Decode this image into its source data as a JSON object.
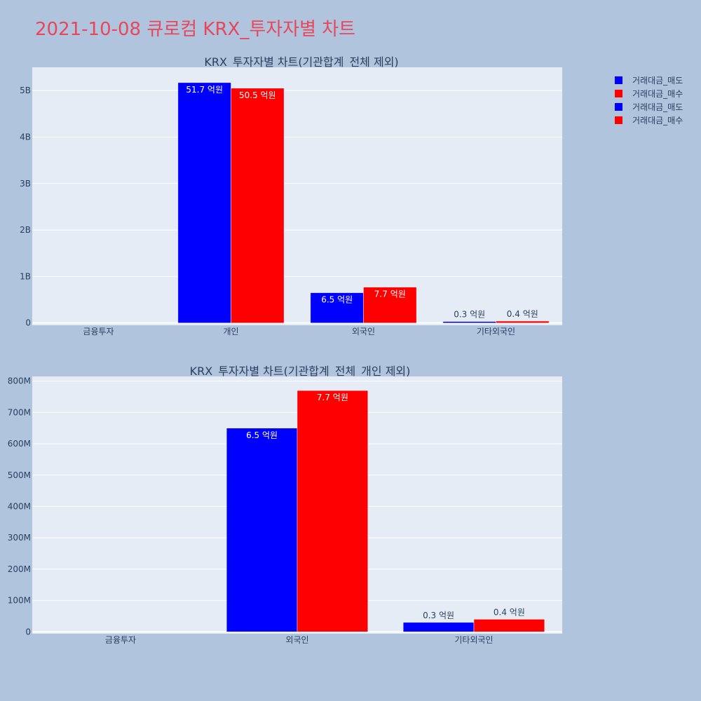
{
  "page_title": "2021-10-08 큐로컴 KRX_투자자별 차트",
  "legend": [
    {
      "label": "거래대금_매도",
      "color": "#0000ff"
    },
    {
      "label": "거래대금_매수",
      "color": "#ff0000"
    },
    {
      "label": "거래대금_매도",
      "color": "#0000ff"
    },
    {
      "label": "거래대금_매수",
      "color": "#ff0000"
    }
  ],
  "chart_data": [
    {
      "type": "bar",
      "title": "KRX_투자자별 차트(기관합계_전체 제외)",
      "categories": [
        "금융투자",
        "개인",
        "외국인",
        "기타외국인"
      ],
      "series": [
        {
          "name": "거래대금_매도",
          "color": "#0000ff",
          "values": [
            0,
            5170000000,
            650000000,
            30000000
          ],
          "labels": [
            "",
            "51.7 억원",
            "6.5 억원",
            "0.3 억원"
          ]
        },
        {
          "name": "거래대금_매수",
          "color": "#ff0000",
          "values": [
            0,
            5050000000,
            770000000,
            40000000
          ],
          "labels": [
            "",
            "50.5 억원",
            "7.7 억원",
            "0.4 억원"
          ]
        }
      ],
      "yticks": [
        0,
        1000000000,
        2000000000,
        3000000000,
        4000000000,
        5000000000
      ],
      "ytick_labels": [
        "0",
        "1B",
        "2B",
        "3B",
        "4B",
        "5B"
      ],
      "ylim": [
        -50000000,
        5500000000
      ],
      "grid": true
    },
    {
      "type": "bar",
      "title": "KRX_투자자별 차트(기관합계_전체_개인 제외)",
      "categories": [
        "금융투자",
        "외국인",
        "기타외국인"
      ],
      "series": [
        {
          "name": "거래대금_매도",
          "color": "#0000ff",
          "values": [
            0,
            650000000,
            30000000
          ],
          "labels": [
            "",
            "6.5 억원",
            "0.3 억원"
          ]
        },
        {
          "name": "거래대금_매수",
          "color": "#ff0000",
          "values": [
            0,
            770000000,
            40000000
          ],
          "labels": [
            "",
            "7.7 억원",
            "0.4 억원"
          ]
        }
      ],
      "yticks": [
        0,
        100000000,
        200000000,
        300000000,
        400000000,
        500000000,
        600000000,
        700000000,
        800000000
      ],
      "ytick_labels": [
        "0",
        "100M",
        "200M",
        "300M",
        "400M",
        "500M",
        "600M",
        "700M",
        "800M"
      ],
      "ylim": [
        -6000000,
        815000000
      ],
      "grid": true
    }
  ]
}
